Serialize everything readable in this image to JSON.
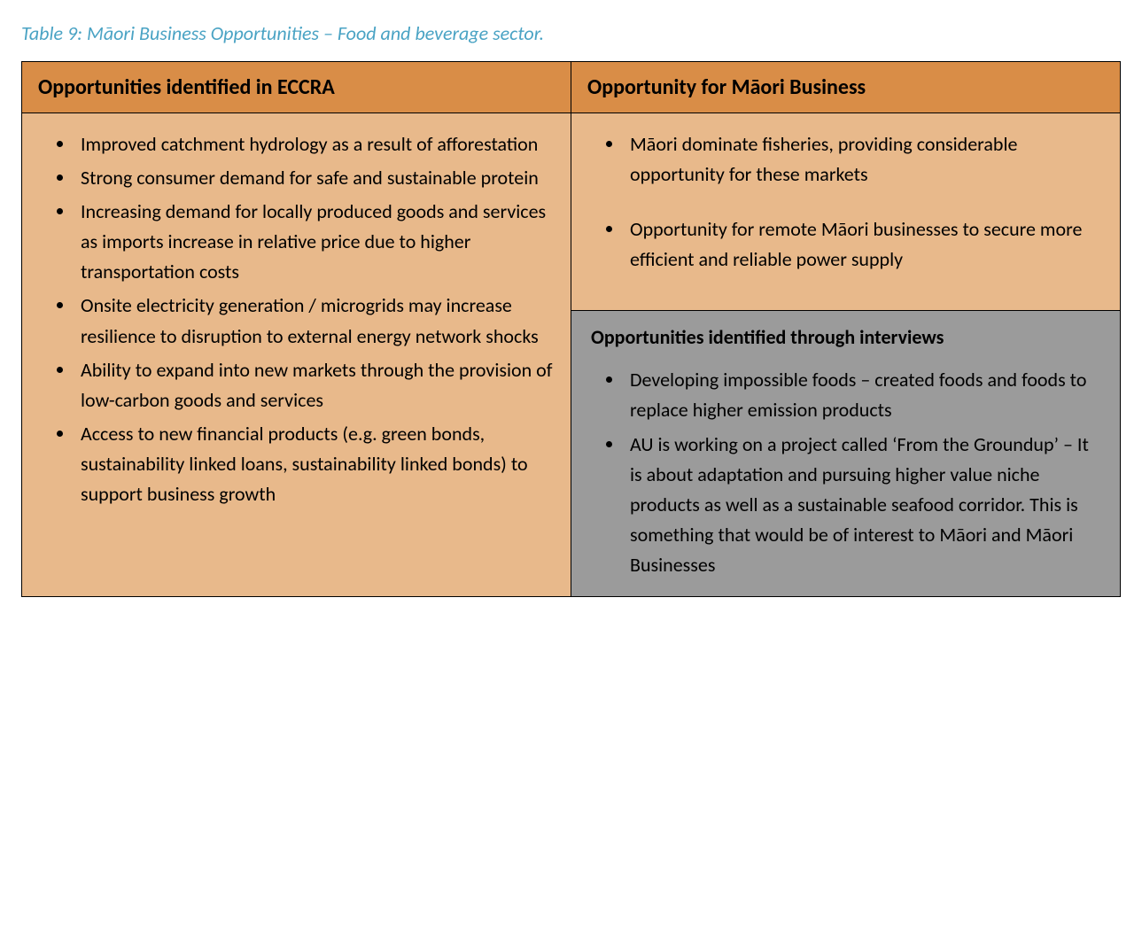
{
  "caption": {
    "text": "Table 9: Māori Business Opportunities – Food and beverage sector.",
    "color": "#4aa3c4"
  },
  "table": {
    "header_bg": "#d98d47",
    "body_bg_left": "#e8b98b",
    "body_bg_right_top": "#e8b98b",
    "body_bg_right_bottom": "#9b9b9b",
    "border_color": "#000000",
    "columns": [
      {
        "label": "Opportunities identified in ECCRA"
      },
      {
        "label": "Opportunity for Māori Business"
      }
    ],
    "left_items": [
      "Improved catchment hydrology as a result of afforestation",
      "Strong consumer demand for safe and sustainable protein",
      "Increasing demand for locally produced goods and services as imports increase in relative price due to higher transportation costs",
      "Onsite electricity generation / microgrids may increase resilience to disruption to external energy network shocks",
      "Ability to expand into new markets through the provision of low-carbon goods and services",
      "Access to new financial products (e.g. green bonds, sustainability linked loans, sustainability linked bonds) to support business growth"
    ],
    "right_top_items": [
      "Māori dominate fisheries, providing considerable opportunity for these markets",
      "Opportunity for remote Māori businesses to secure more efficient and reliable power supply"
    ],
    "right_bottom": {
      "title": "Opportunities identified through interviews",
      "items": [
        "Developing impossible foods – created foods and foods to replace higher emission products",
        "AU is working on a project called ‘From the Groundup’ – It is about adaptation and pursuing higher value niche products as well as a sustainable seafood corridor. This is something that would be of interest to Māori and Māori Businesses"
      ]
    }
  }
}
